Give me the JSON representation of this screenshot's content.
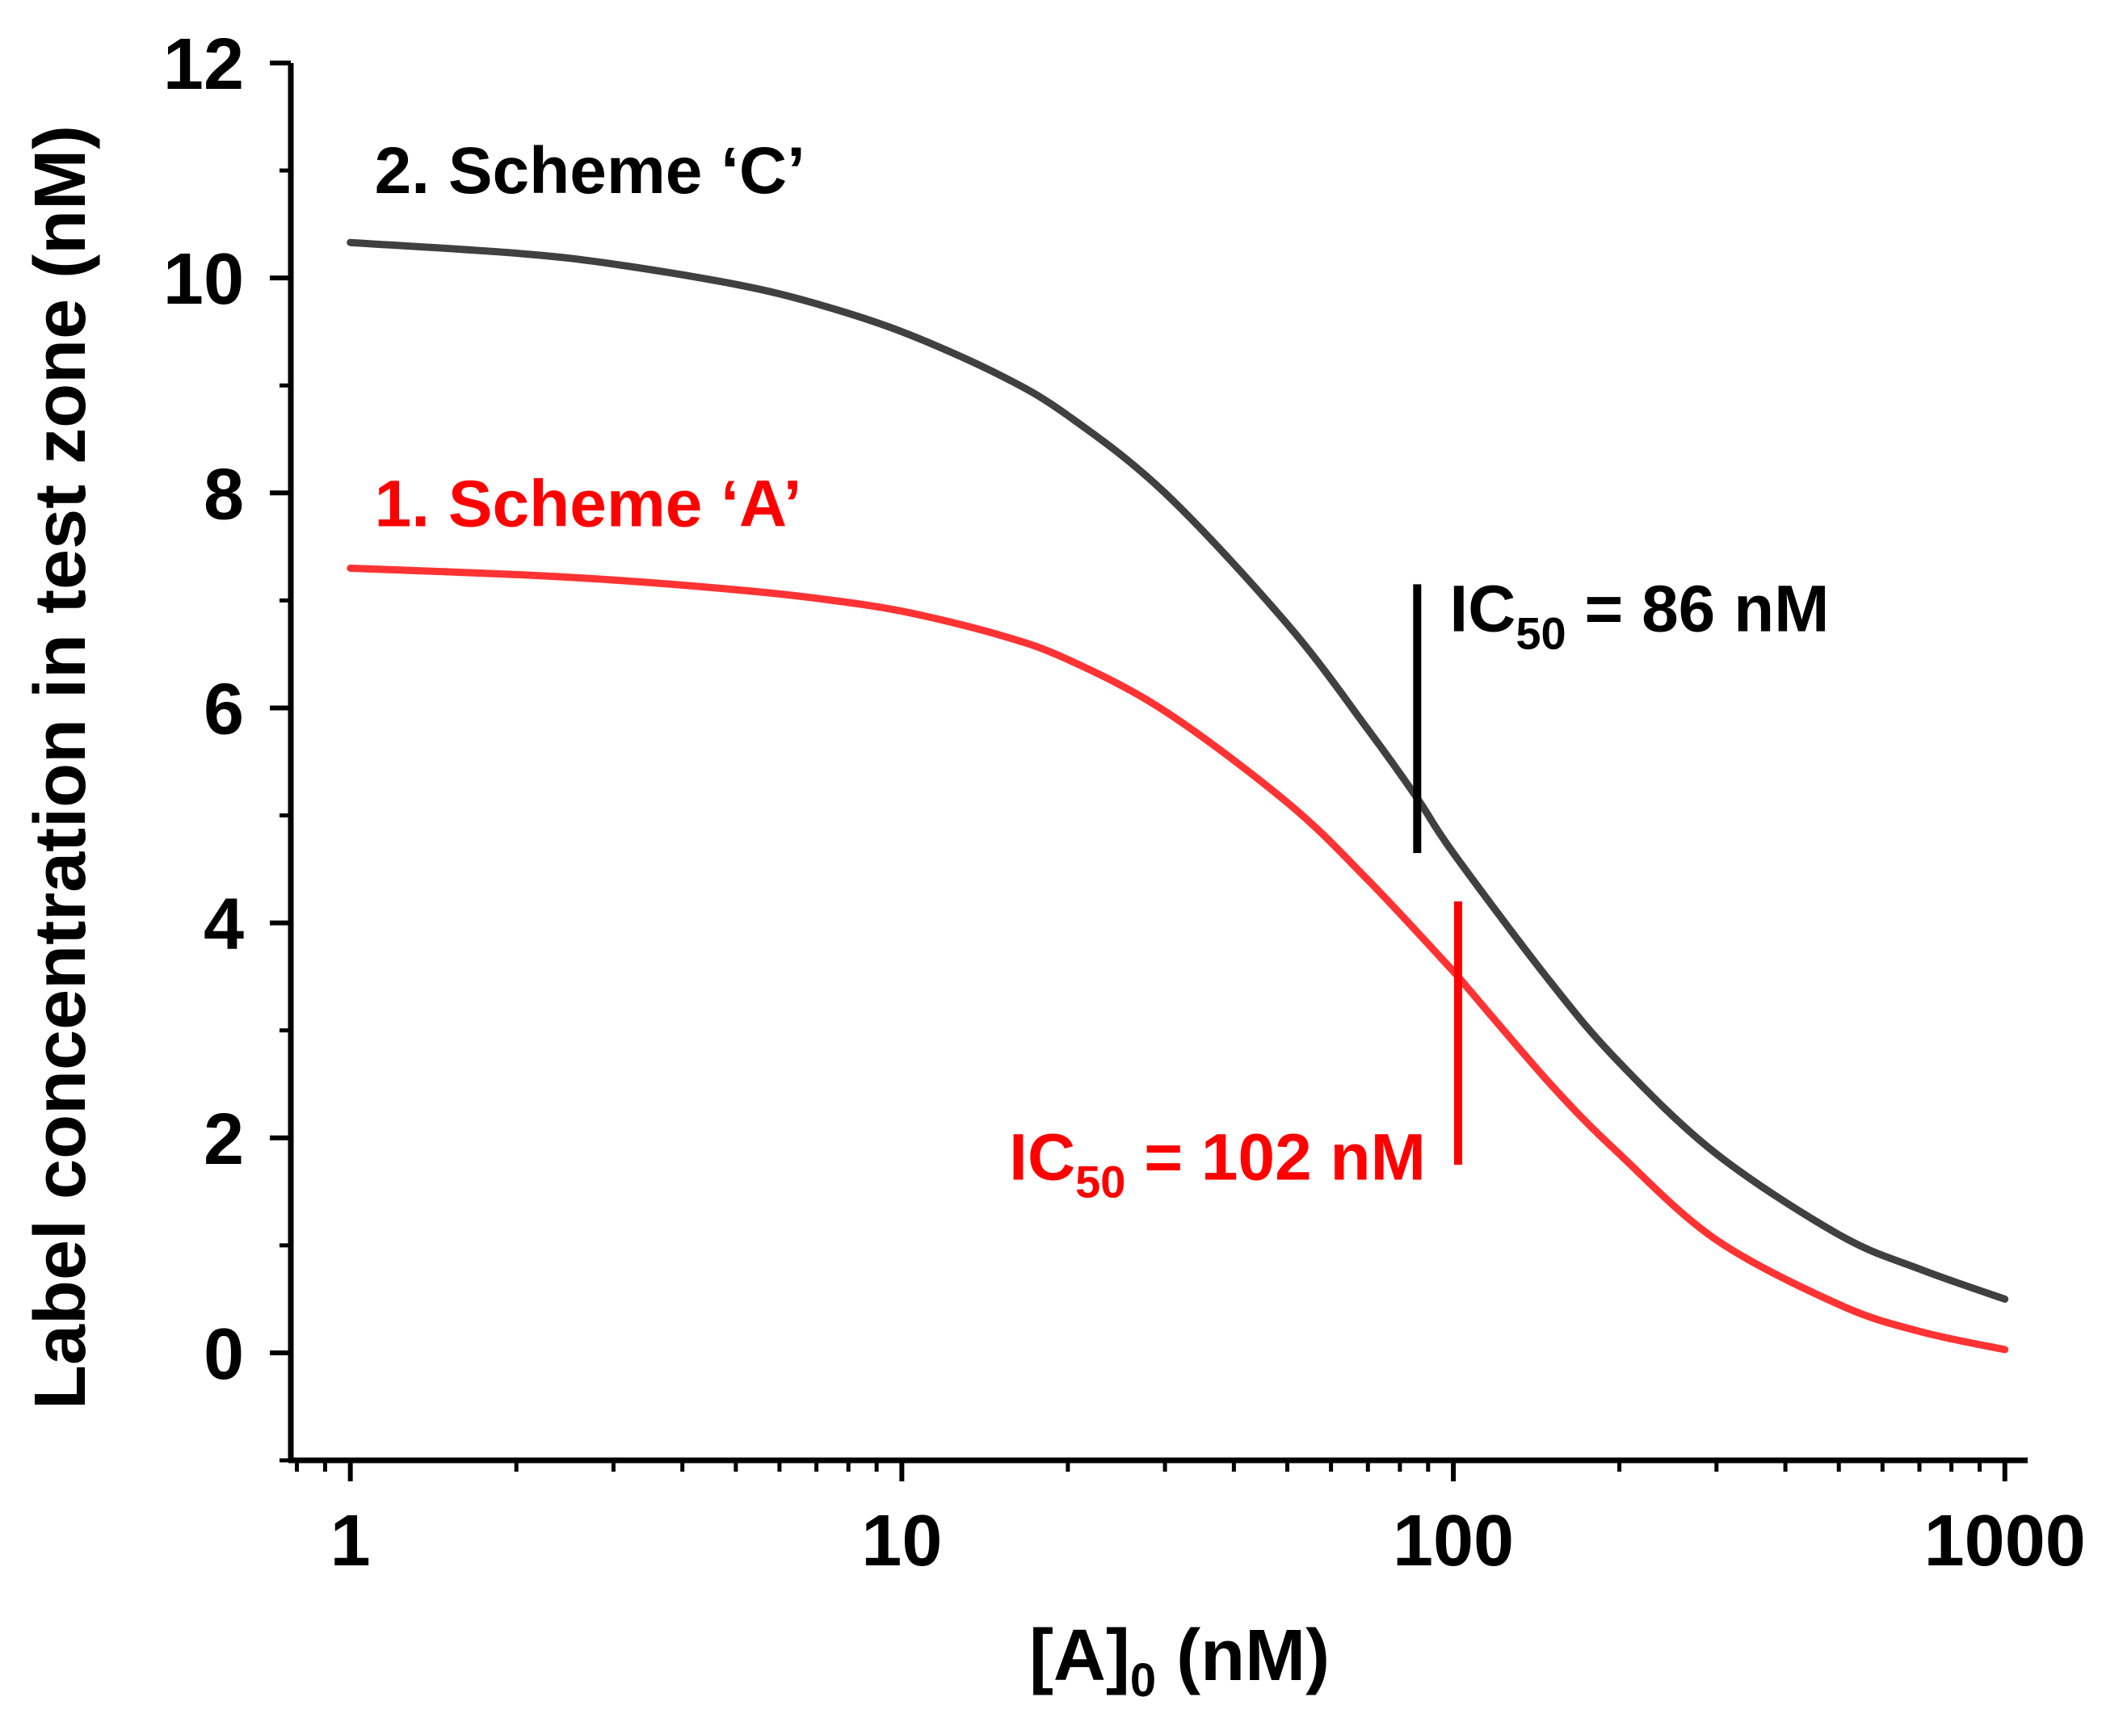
{
  "chart_data": {
    "type": "line",
    "x_scale": "log",
    "xlim": [
      0.78,
      1100
    ],
    "ylim": [
      -1,
      12
    ],
    "xlabel": {
      "main": "[A]",
      "sub": "0",
      "rest": " (nM)"
    },
    "ylabel": "Label concentration in test zone (nM)",
    "x_ticks": [
      {
        "value": 1,
        "label": "1"
      },
      {
        "value": 10,
        "label": "10"
      },
      {
        "value": 100,
        "label": "100"
      },
      {
        "value": 1000,
        "label": "1000"
      }
    ],
    "y_ticks": [
      {
        "value": 0,
        "label": "0"
      },
      {
        "value": 2,
        "label": "2"
      },
      {
        "value": 4,
        "label": "4"
      },
      {
        "value": 6,
        "label": "6"
      },
      {
        "value": 8,
        "label": "8"
      },
      {
        "value": 10,
        "label": "10"
      },
      {
        "value": 12,
        "label": "12"
      }
    ],
    "series": [
      {
        "name": "2. Scheme ‘C’",
        "color": "#404040",
        "x": [
          1,
          2,
          3,
          5,
          7,
          10,
          15,
          20,
          30,
          50,
          70,
          86,
          100,
          150,
          200,
          300,
          500,
          700,
          1000
        ],
        "y": [
          10.33,
          10.23,
          10.13,
          9.94,
          9.76,
          9.5,
          9.1,
          8.72,
          8.0,
          6.78,
          5.8,
          5.16,
          4.65,
          3.45,
          2.7,
          1.85,
          1.1,
          0.78,
          0.5
        ]
      },
      {
        "name": "1. Scheme ‘A’",
        "color": "#ff3333",
        "x": [
          1,
          2,
          3,
          5,
          7,
          10,
          15,
          20,
          30,
          50,
          70,
          100,
          102,
          150,
          200,
          300,
          500,
          700,
          1000
        ],
        "y": [
          7.3,
          7.24,
          7.19,
          7.1,
          7.02,
          6.9,
          6.68,
          6.45,
          5.97,
          5.12,
          4.4,
          3.55,
          3.5,
          2.5,
          1.85,
          1.05,
          0.45,
          0.2,
          0.03
        ]
      }
    ],
    "labels": [
      {
        "text": "2. Scheme ‘C’",
        "color": "#000000",
        "at_x": 1,
        "at_y": 11.0
      },
      {
        "text": "1. Scheme ‘A’",
        "color": "#ff0000",
        "at_x": 1,
        "at_y": 7.9
      }
    ],
    "ic50_markers": [
      {
        "x": 86,
        "y_from": 4.65,
        "y_to": 7.15,
        "color": "#000000",
        "label_main": "IC",
        "label_sub": "50",
        "label_rest": " = 86 nM",
        "label_side": "right",
        "label_y": 6.9
      },
      {
        "x": 102,
        "y_from": 1.75,
        "y_to": 4.2,
        "color": "#ff0000",
        "label_main": "IC",
        "label_sub": "50",
        "label_rest": " = 102 nM",
        "label_side": "left",
        "label_y": 1.8
      }
    ]
  }
}
